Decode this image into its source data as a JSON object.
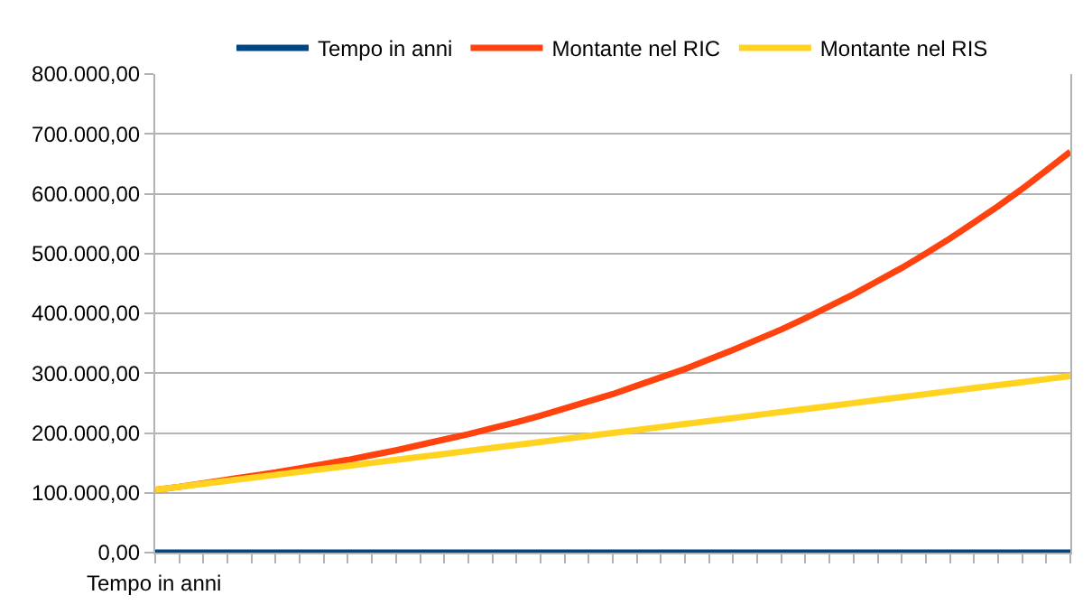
{
  "chart_data": {
    "type": "line",
    "xlabel": "Tempo in anni",
    "categories": [
      null,
      null,
      null,
      null,
      null,
      null,
      null,
      null,
      null,
      null,
      null,
      null,
      null,
      null,
      null,
      null,
      null,
      null,
      null,
      null,
      null,
      null,
      null,
      null,
      null,
      null,
      null,
      null,
      null,
      null,
      null,
      null,
      null,
      null,
      null,
      null,
      null,
      null,
      null
    ],
    "series": [
      {
        "name": "Tempo in anni",
        "color": "#004586",
        "values": [
          0,
          0,
          0,
          0,
          0,
          0,
          0,
          0,
          0,
          0,
          0,
          0,
          0,
          0,
          0,
          0,
          0,
          0,
          0,
          0,
          0,
          0,
          0,
          0,
          0,
          0,
          0,
          0,
          0,
          0,
          0,
          0,
          0,
          0,
          0,
          0,
          0,
          0,
          0
        ]
      },
      {
        "name": "Montante nel RIC",
        "color": "#ff420e",
        "values": [
          105000,
          110000,
          116000,
          122000,
          128000,
          134000,
          141000,
          148000,
          155000,
          163000,
          171000,
          180000,
          189000,
          198000,
          208000,
          218000,
          229000,
          241000,
          253000,
          265000,
          279000,
          293000,
          307000,
          323000,
          339000,
          356000,
          373000,
          392000,
          412000,
          432000,
          454000,
          476000,
          500000,
          525000,
          552000,
          579000,
          608000,
          639000,
          670000
        ]
      },
      {
        "name": "Montante nel RIS",
        "color": "#ffd320",
        "values": [
          105000,
          110000,
          115000,
          120000,
          125000,
          130000,
          135000,
          140000,
          145000,
          150000,
          155000,
          160000,
          165000,
          170000,
          175000,
          180000,
          185000,
          190000,
          195000,
          200000,
          205000,
          210000,
          215000,
          220000,
          225000,
          230000,
          235000,
          240000,
          245000,
          250000,
          255000,
          260000,
          265000,
          270000,
          275000,
          280000,
          285000,
          290000,
          295000
        ]
      }
    ],
    "ylim": [
      0,
      800000
    ],
    "yticks": [
      {
        "value": 0,
        "label": "0,00"
      },
      {
        "value": 100000,
        "label": "100.000,00"
      },
      {
        "value": 200000,
        "label": "200.000,00"
      },
      {
        "value": 300000,
        "label": "300.000,00"
      },
      {
        "value": 400000,
        "label": "400.000,00"
      },
      {
        "value": 500000,
        "label": "500.000,00"
      },
      {
        "value": 600000,
        "label": "600.000,00"
      },
      {
        "value": 700000,
        "label": "700.000,00"
      },
      {
        "value": 800000,
        "label": "800.000,00"
      }
    ],
    "grid": "y",
    "legend": "top",
    "marker": "none",
    "line_style": "solid"
  }
}
